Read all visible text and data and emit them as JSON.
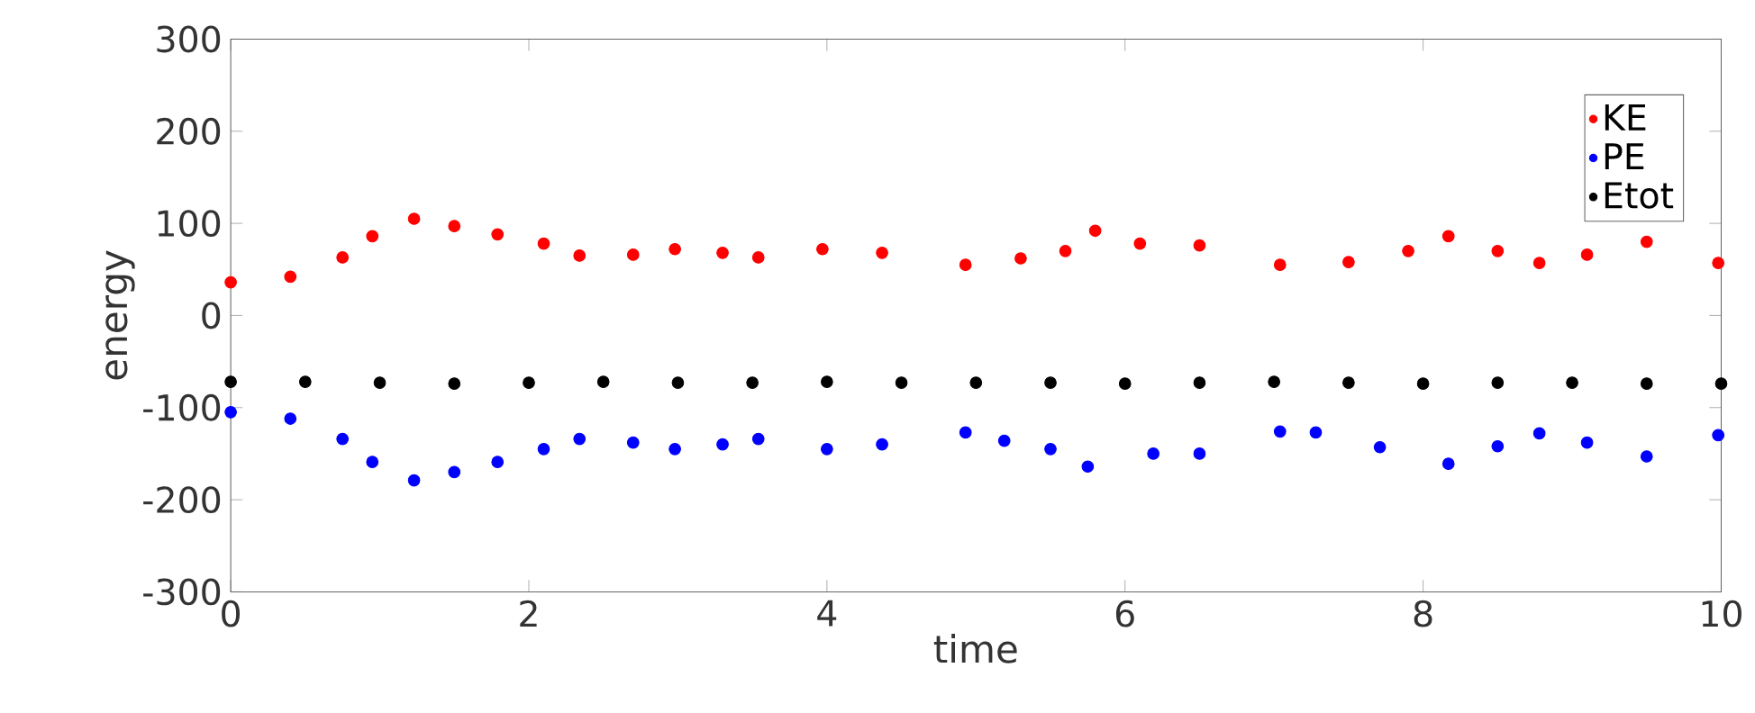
{
  "chart_data": {
    "type": "scatter",
    "xlabel": "time",
    "ylabel": "energy",
    "xlim": [
      0,
      10
    ],
    "ylim": [
      -300,
      300
    ],
    "xticks": [
      0,
      2,
      4,
      6,
      8,
      10
    ],
    "yticks": [
      -300,
      -200,
      -100,
      0,
      100,
      200,
      300
    ],
    "legend": "top right",
    "marker": "circle",
    "grid": false,
    "series": [
      {
        "name": "KE",
        "color": "#ff0000",
        "x": [
          0,
          0.4,
          0.75,
          0.95,
          1.23,
          1.5,
          1.79,
          2.1,
          2.34,
          2.7,
          2.98,
          3.3,
          3.54,
          3.97,
          4.37,
          4.93,
          5.3,
          5.6,
          5.8,
          6.1,
          6.5,
          7.04,
          7.5,
          7.9,
          8.17,
          8.5,
          8.78,
          9.1,
          9.5,
          9.98
        ],
        "values": [
          36,
          42,
          63,
          86,
          105,
          97,
          88,
          78,
          65,
          66,
          72,
          68,
          63,
          72,
          68,
          55,
          62,
          70,
          92,
          78,
          76,
          55,
          58,
          70,
          86,
          70,
          57,
          66,
          80,
          57
        ]
      },
      {
        "name": "PE",
        "color": "#0000ff",
        "x": [
          0,
          0.4,
          0.75,
          0.95,
          1.23,
          1.5,
          1.79,
          2.1,
          2.34,
          2.7,
          2.98,
          3.3,
          3.54,
          4.0,
          4.37,
          4.93,
          5.19,
          5.5,
          5.75,
          6.19,
          6.5,
          7.04,
          7.28,
          7.71,
          8.17,
          8.5,
          8.78,
          9.1,
          9.5,
          9.98
        ],
        "values": [
          -105,
          -112,
          -134,
          -159,
          -179,
          -170,
          -159,
          -145,
          -134,
          -138,
          -145,
          -140,
          -134,
          -145,
          -140,
          -127,
          -136,
          -145,
          -164,
          -150,
          -150,
          -126,
          -127,
          -143,
          -161,
          -142,
          -128,
          -138,
          -153,
          -130
        ]
      },
      {
        "name": "Etot",
        "color": "#000000",
        "x": [
          0,
          0.5,
          1,
          1.5,
          2,
          2.5,
          3,
          3.5,
          4,
          4.5,
          5,
          5.5,
          6,
          6.5,
          7,
          7.5,
          8,
          8.5,
          9,
          9.5,
          10
        ],
        "values": [
          -72,
          -72,
          -73,
          -74,
          -73,
          -72,
          -73,
          -73,
          -72,
          -73,
          -73,
          -73,
          -74,
          -73,
          -72,
          -73,
          -74,
          -73,
          -73,
          -74,
          -74
        ]
      }
    ]
  }
}
